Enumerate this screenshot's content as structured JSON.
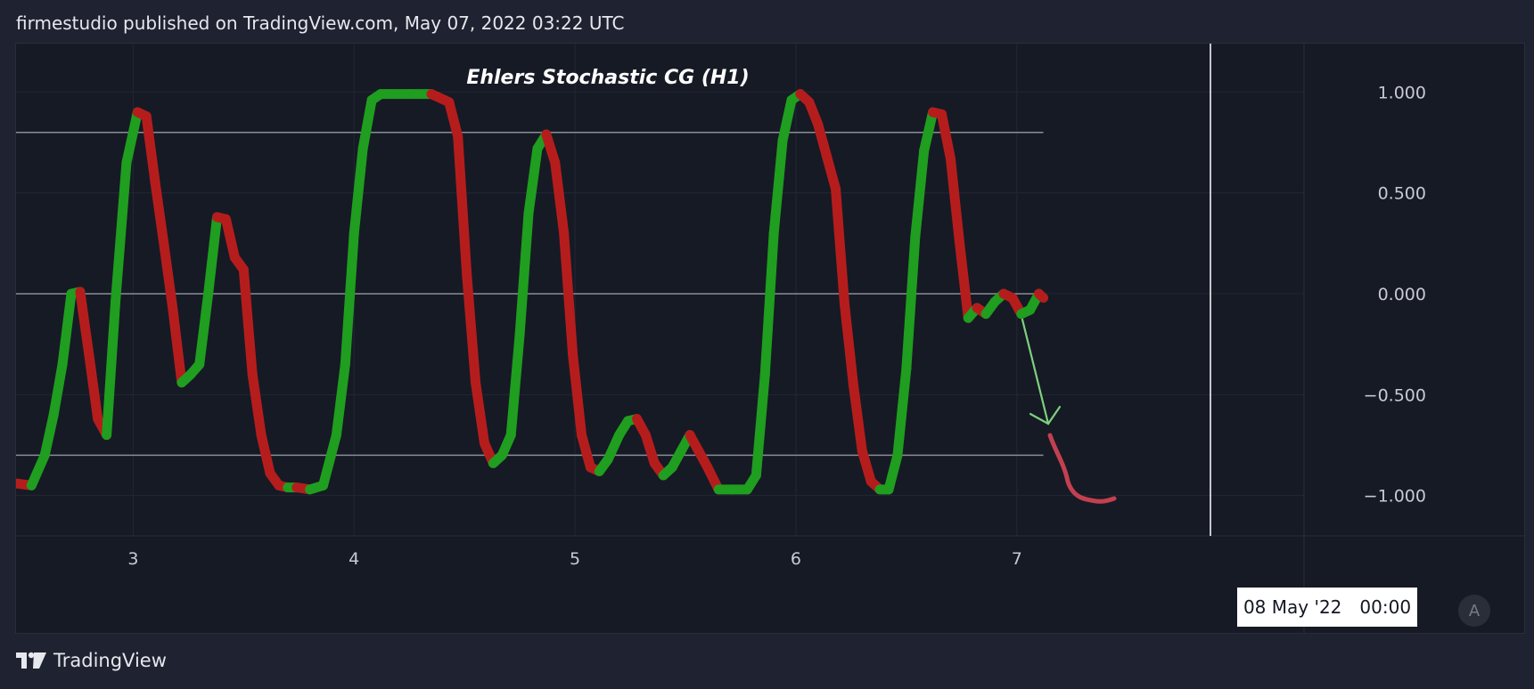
{
  "header": {
    "text": "firmestudio published on TradingView.com, May 07, 2022 03:22 UTC"
  },
  "footer": {
    "brand": "TradingView"
  },
  "scale_button": {
    "label": "A"
  },
  "crosshair": {
    "date": "08 May '22",
    "time": "00:00"
  },
  "colors": {
    "background": "#161a25",
    "rising": "#1f9e1f",
    "falling": "#b51d1d",
    "level_line": "#8a8d96",
    "arrow": "#7ed07e",
    "drawing": "#c2404f"
  },
  "chart_data": {
    "type": "line",
    "title": "Ehlers Stochastic CG (H1)",
    "xlabel": "",
    "ylabel": "",
    "x_ticks": [
      3,
      4,
      5,
      6,
      7
    ],
    "x_tick_labels": [
      "3",
      "4",
      "5",
      "6",
      "7"
    ],
    "xlim": [
      2.47,
      8.3
    ],
    "ylim": [
      -1.2,
      1.24
    ],
    "y_ticks": [
      1.0,
      0.5,
      0.0,
      -0.5,
      -1.0
    ],
    "y_tick_labels": [
      "1.000",
      "0.500",
      "0.000",
      "−0.500",
      "−1.000"
    ],
    "levels": [
      0.8,
      0.0,
      -0.8
    ],
    "grid": true,
    "series": [
      {
        "x": [
          2.47,
          2.54,
          2.6,
          2.64,
          2.68,
          2.72,
          2.76,
          2.8,
          2.84,
          2.88,
          2.92,
          2.97,
          3.02,
          3.06,
          3.1,
          3.14,
          3.18,
          3.22,
          3.26,
          3.3,
          3.34,
          3.38,
          3.42,
          3.46,
          3.5,
          3.54,
          3.58,
          3.62,
          3.66,
          3.7,
          3.74,
          3.8,
          3.86,
          3.92,
          3.96,
          4.0,
          4.04,
          4.08,
          4.12,
          4.17,
          4.25,
          4.35,
          4.43,
          4.47,
          4.51,
          4.55,
          4.59,
          4.63,
          4.67,
          4.71,
          4.75,
          4.79,
          4.83,
          4.87,
          4.91,
          4.95,
          4.99,
          5.03,
          5.07,
          5.11,
          5.15,
          5.2,
          5.24,
          5.28,
          5.32,
          5.36,
          5.4,
          5.44,
          5.48,
          5.52,
          5.56,
          5.6,
          5.65,
          5.71,
          5.78,
          5.82,
          5.86,
          5.9,
          5.94,
          5.98,
          6.02,
          6.06,
          6.1,
          6.14,
          6.18,
          6.22,
          6.26,
          6.3,
          6.34,
          6.38,
          6.42,
          6.46,
          6.5,
          6.54,
          6.58,
          6.62,
          6.66,
          6.7,
          6.74,
          6.78,
          6.82,
          6.86,
          6.9,
          6.94,
          6.98,
          7.02,
          7.06,
          7.1,
          7.12
        ],
        "y": [
          -0.94,
          -0.95,
          -0.8,
          -0.6,
          -0.35,
          0.0,
          0.01,
          -0.3,
          -0.62,
          -0.7,
          -0.04,
          0.65,
          0.9,
          0.88,
          0.55,
          0.24,
          -0.08,
          -0.44,
          -0.4,
          -0.35,
          0.0,
          0.38,
          0.37,
          0.18,
          0.12,
          -0.4,
          -0.7,
          -0.89,
          -0.95,
          -0.96,
          -0.96,
          -0.97,
          -0.95,
          -0.7,
          -0.35,
          0.3,
          0.72,
          0.96,
          0.99,
          0.99,
          0.99,
          0.99,
          0.95,
          0.78,
          0.1,
          -0.44,
          -0.74,
          -0.84,
          -0.8,
          -0.7,
          -0.2,
          0.4,
          0.72,
          0.79,
          0.65,
          0.3,
          -0.3,
          -0.7,
          -0.86,
          -0.88,
          -0.82,
          -0.7,
          -0.63,
          -0.62,
          -0.7,
          -0.84,
          -0.9,
          -0.86,
          -0.78,
          -0.7,
          -0.78,
          -0.86,
          -0.97,
          -0.97,
          -0.97,
          -0.9,
          -0.4,
          0.3,
          0.76,
          0.96,
          0.99,
          0.95,
          0.84,
          0.68,
          0.52,
          -0.05,
          -0.45,
          -0.78,
          -0.93,
          -0.97,
          -0.97,
          -0.8,
          -0.37,
          0.28,
          0.71,
          0.9,
          0.89,
          0.67,
          0.26,
          -0.12,
          -0.07,
          -0.1,
          -0.04,
          0.0,
          -0.02,
          -0.1,
          -0.08,
          0.0,
          -0.02
        ]
      }
    ]
  }
}
